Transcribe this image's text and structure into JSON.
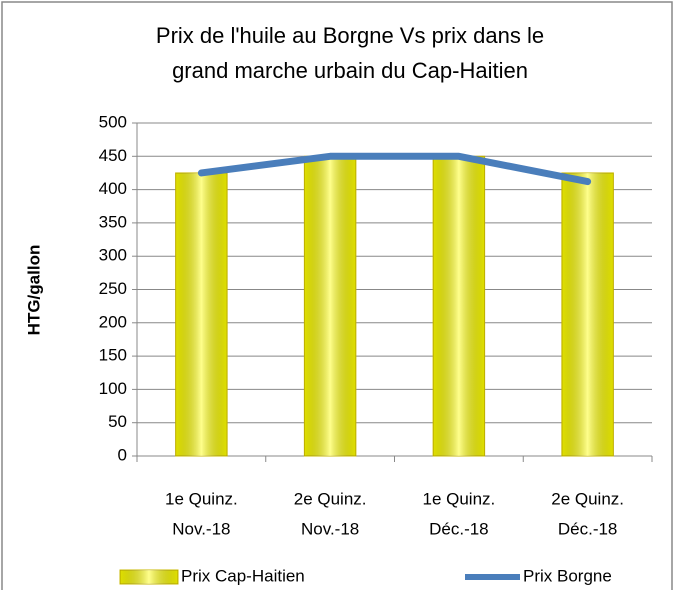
{
  "chart_data": {
    "type": "bar_line",
    "title": [
      "Prix de l'huile au Borgne Vs prix dans le",
      "grand marche urbain du Cap-Haitien"
    ],
    "y_label": "HTG/gallon",
    "categories": [
      [
        "1e Quinz.",
        "Nov.-18"
      ],
      [
        "2e Quinz.",
        "Nov.-18"
      ],
      [
        "1e Quinz.",
        "Déc.-18"
      ],
      [
        "2e Quinz.",
        "Déc.-18"
      ]
    ],
    "series": [
      {
        "name": "Prix Cap-Haitien",
        "type": "bar",
        "color": "#ffff00",
        "values": [
          425,
          450,
          450,
          425
        ]
      },
      {
        "name": "Prix Borgne",
        "type": "line",
        "color": "#4a7ebb",
        "values": [
          425,
          450,
          450,
          412
        ]
      }
    ],
    "ylim": [
      0,
      500
    ],
    "yticks": [
      0,
      50,
      100,
      150,
      200,
      250,
      300,
      350,
      400,
      450,
      500
    ],
    "grid": true,
    "legend": "bottom"
  }
}
